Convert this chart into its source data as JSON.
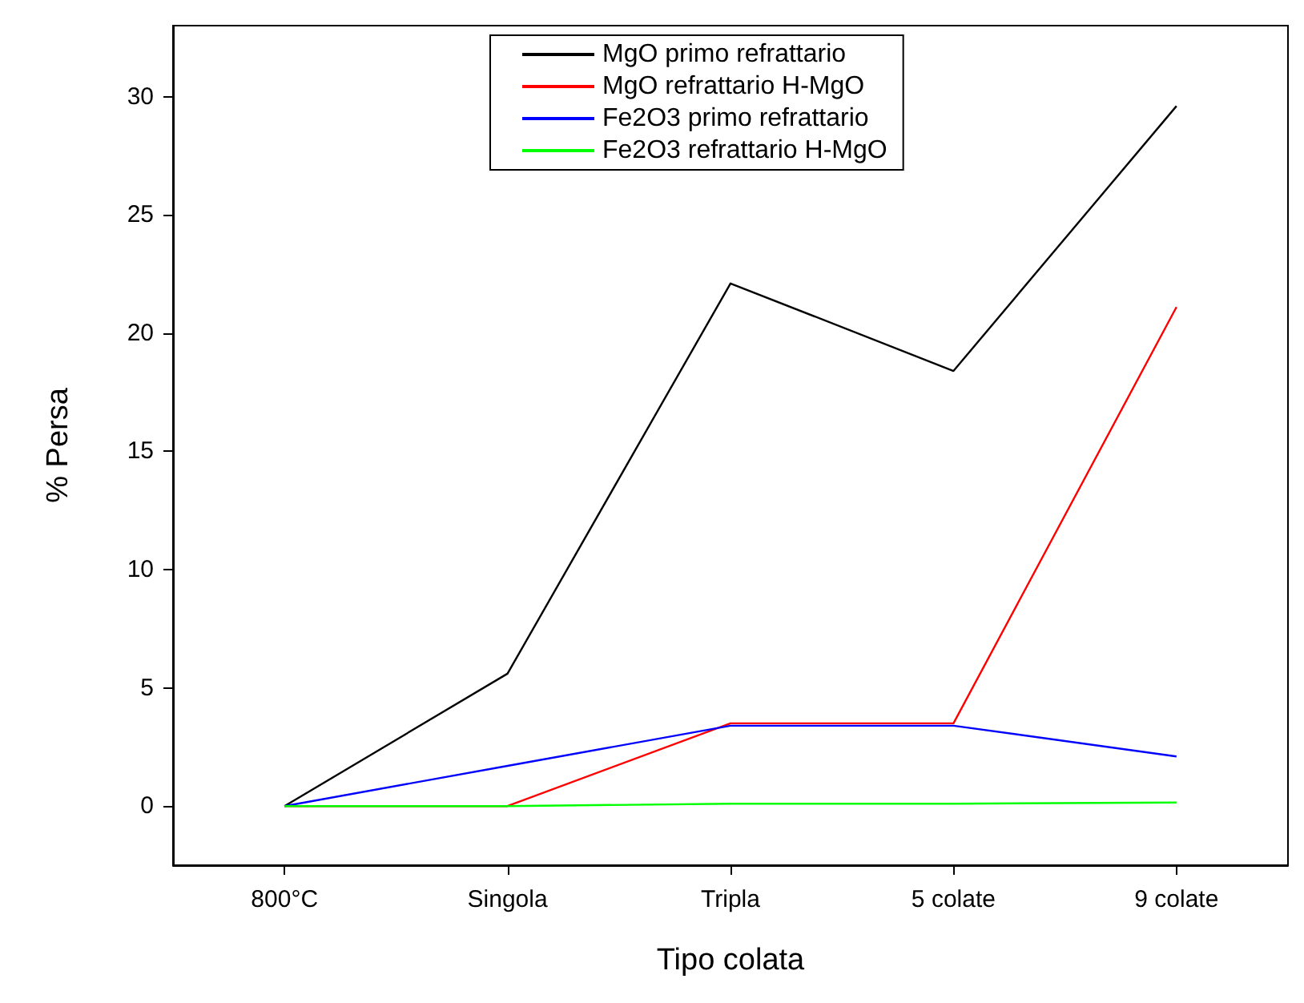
{
  "chart_data": {
    "type": "line",
    "xlabel": "Tipo colata",
    "ylabel": "% Persa",
    "categories": [
      "800°C",
      "Singola",
      "Tripla",
      "5 colate",
      "9 colate"
    ],
    "series": [
      {
        "name": "MgO primo refrattario",
        "color": "#000000",
        "values": [
          0,
          5.6,
          22.1,
          18.4,
          29.6
        ]
      },
      {
        "name": "MgO refrattario H-MgO",
        "color": "#ff0000",
        "values": [
          0,
          0,
          3.5,
          3.5,
          21.1
        ]
      },
      {
        "name": "Fe2O3 primo refrattario",
        "color": "#0000ff",
        "values": [
          0,
          1.7,
          3.4,
          3.4,
          2.1
        ]
      },
      {
        "name": "Fe2O3 refrattario H-MgO",
        "color": "#00ff00",
        "values": [
          0,
          0,
          0.1,
          0.1,
          0.15
        ]
      }
    ],
    "ylim": [
      -2.5,
      33
    ],
    "yticks": [
      0,
      5,
      10,
      15,
      20,
      25,
      30
    ],
    "grid": false,
    "legend": "top",
    "marker": "none",
    "line_style": "solid"
  }
}
